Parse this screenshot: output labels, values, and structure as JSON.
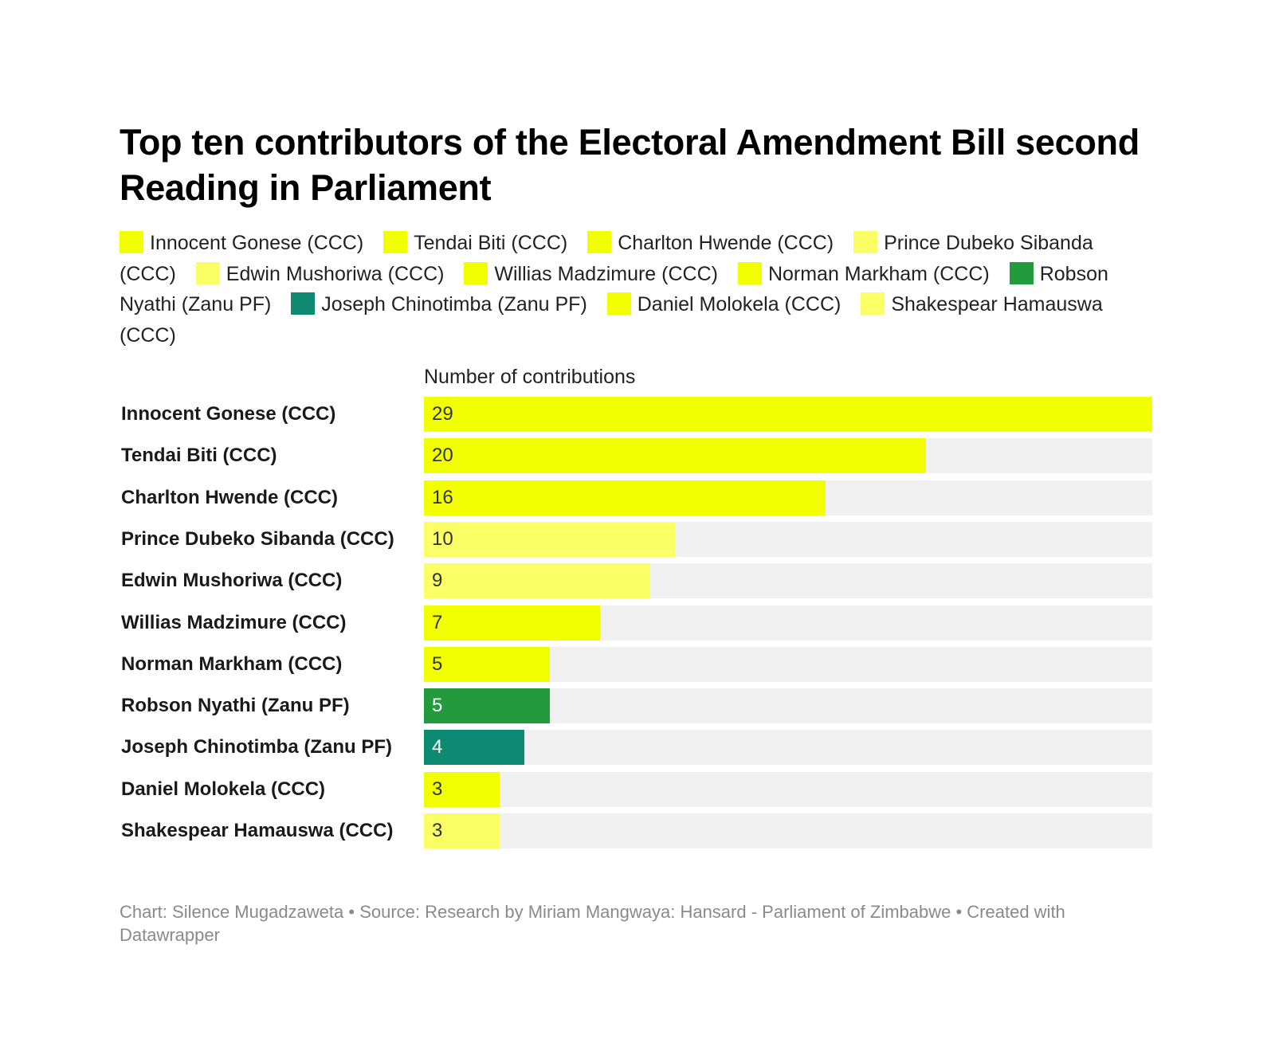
{
  "chart_data": {
    "type": "bar",
    "title": "Top ten contributors of the Electoral Amendment Bill second Reading in Parliament",
    "xlabel": "Number of contributions",
    "xlim": [
      0,
      29
    ],
    "legend_position": "top",
    "categories": [
      "Innocent Gonese (CCC)",
      "Tendai Biti (CCC)",
      "Charlton Hwende (CCC)",
      "Prince Dubeko Sibanda (CCC)",
      "Edwin Mushoriwa (CCC)",
      "Willias Madzimure (CCC)",
      "Norman Markham (CCC)",
      "Robson Nyathi (Zanu PF)",
      "Joseph Chinotimba (Zanu PF)",
      "Daniel Molokela (CCC)",
      "Shakespear Hamauswa (CCC)"
    ],
    "values": [
      29,
      20,
      16,
      10,
      9,
      7,
      5,
      5,
      4,
      3,
      3
    ],
    "value_labels": [
      "29",
      "20",
      "16",
      "10",
      "9",
      "7",
      "5",
      "5",
      "4",
      "3",
      "3"
    ],
    "colors": [
      "#f2ff00",
      "#f2ff00",
      "#f2ff00",
      "#fbff66",
      "#fbff66",
      "#f2ff00",
      "#f2ff00",
      "#239a3e",
      "#0f8a72",
      "#f2ff00",
      "#fbff66"
    ],
    "label_colors": [
      "dark",
      "dark",
      "dark",
      "dark",
      "dark",
      "dark",
      "dark",
      "light",
      "light",
      "dark",
      "dark"
    ],
    "track_color": "#f0f0f0",
    "legend": [
      {
        "label": "Innocent Gonese (CCC)",
        "color": "#f2ff00"
      },
      {
        "label": "Tendai Biti (CCC)",
        "color": "#f2ff00"
      },
      {
        "label": "Charlton Hwende (CCC)",
        "color": "#f2ff00"
      },
      {
        "label": "Prince Dubeko Sibanda (CCC)",
        "color": "#fbff66"
      },
      {
        "label": "Edwin Mushoriwa (CCC)",
        "color": "#fbff66"
      },
      {
        "label": "Willias Madzimure (CCC)",
        "color": "#f2ff00"
      },
      {
        "label": "Norman Markham (CCC)",
        "color": "#f2ff00"
      },
      {
        "label": "Robson Nyathi (Zanu PF)",
        "color": "#239a3e"
      },
      {
        "label": "Joseph Chinotimba (Zanu PF)",
        "color": "#0f8a72"
      },
      {
        "label": "Daniel Molokela (CCC)",
        "color": "#f2ff00"
      },
      {
        "label": "Shakespear Hamauswa (CCC)",
        "color": "#fbff66"
      }
    ]
  },
  "footer": {
    "text": "Chart: Silence Mugadzaweta • Source: Research by Miriam Mangwaya: Hansard - Parliament of Zimbabwe • Created with Datawrapper"
  }
}
